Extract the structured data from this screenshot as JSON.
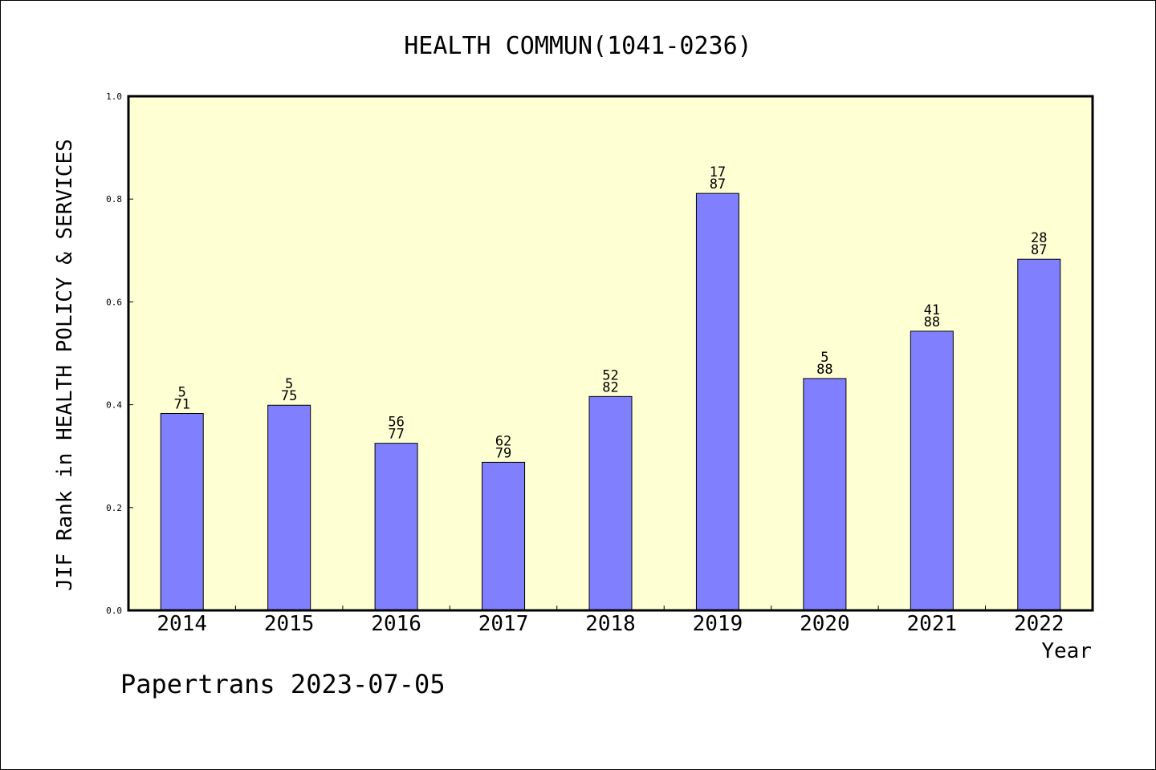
{
  "chart_data": {
    "type": "bar",
    "title": "HEALTH COMMUN(1041-0236)",
    "xlabel": "Year",
    "ylabel": "JIF Rank in HEALTH POLICY & SERVICES",
    "ylim": [
      0,
      1.0
    ],
    "yticks": [
      "0.0",
      "0.2",
      "0.4",
      "0.6",
      "0.8",
      "1.0"
    ],
    "categories": [
      "2014",
      "2015",
      "2016",
      "2017",
      "2018",
      "2019",
      "2020",
      "2021",
      "2022"
    ],
    "values": [
      0.383,
      0.399,
      0.325,
      0.288,
      0.416,
      0.811,
      0.451,
      0.543,
      0.683
    ],
    "ranks": [
      "5",
      "5",
      "56",
      "62",
      "52",
      "17",
      "5",
      "41",
      "28"
    ],
    "totals": [
      "71",
      "75",
      "77",
      "79",
      "82",
      "87",
      "88",
      "88",
      "87"
    ],
    "grid": false,
    "plot_background": "#ffffd4",
    "bar_color": "#8080ff"
  },
  "footer": "Papertrans 2023-07-05"
}
